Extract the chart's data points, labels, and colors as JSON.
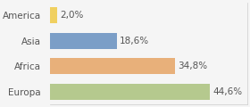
{
  "categories": [
    "America",
    "Asia",
    "Africa",
    "Europa"
  ],
  "values": [
    2.0,
    18.6,
    34.8,
    44.6
  ],
  "labels": [
    "2,0%",
    "18,6%",
    "34,8%",
    "44,6%"
  ],
  "bar_colors": [
    "#f0d060",
    "#7b9ec7",
    "#e8b07a",
    "#b5c98e"
  ],
  "background_color": "#f5f5f5",
  "xlim": [
    0,
    55
  ],
  "bar_height": 0.62,
  "label_fontsize": 7.5,
  "tick_fontsize": 7.5
}
